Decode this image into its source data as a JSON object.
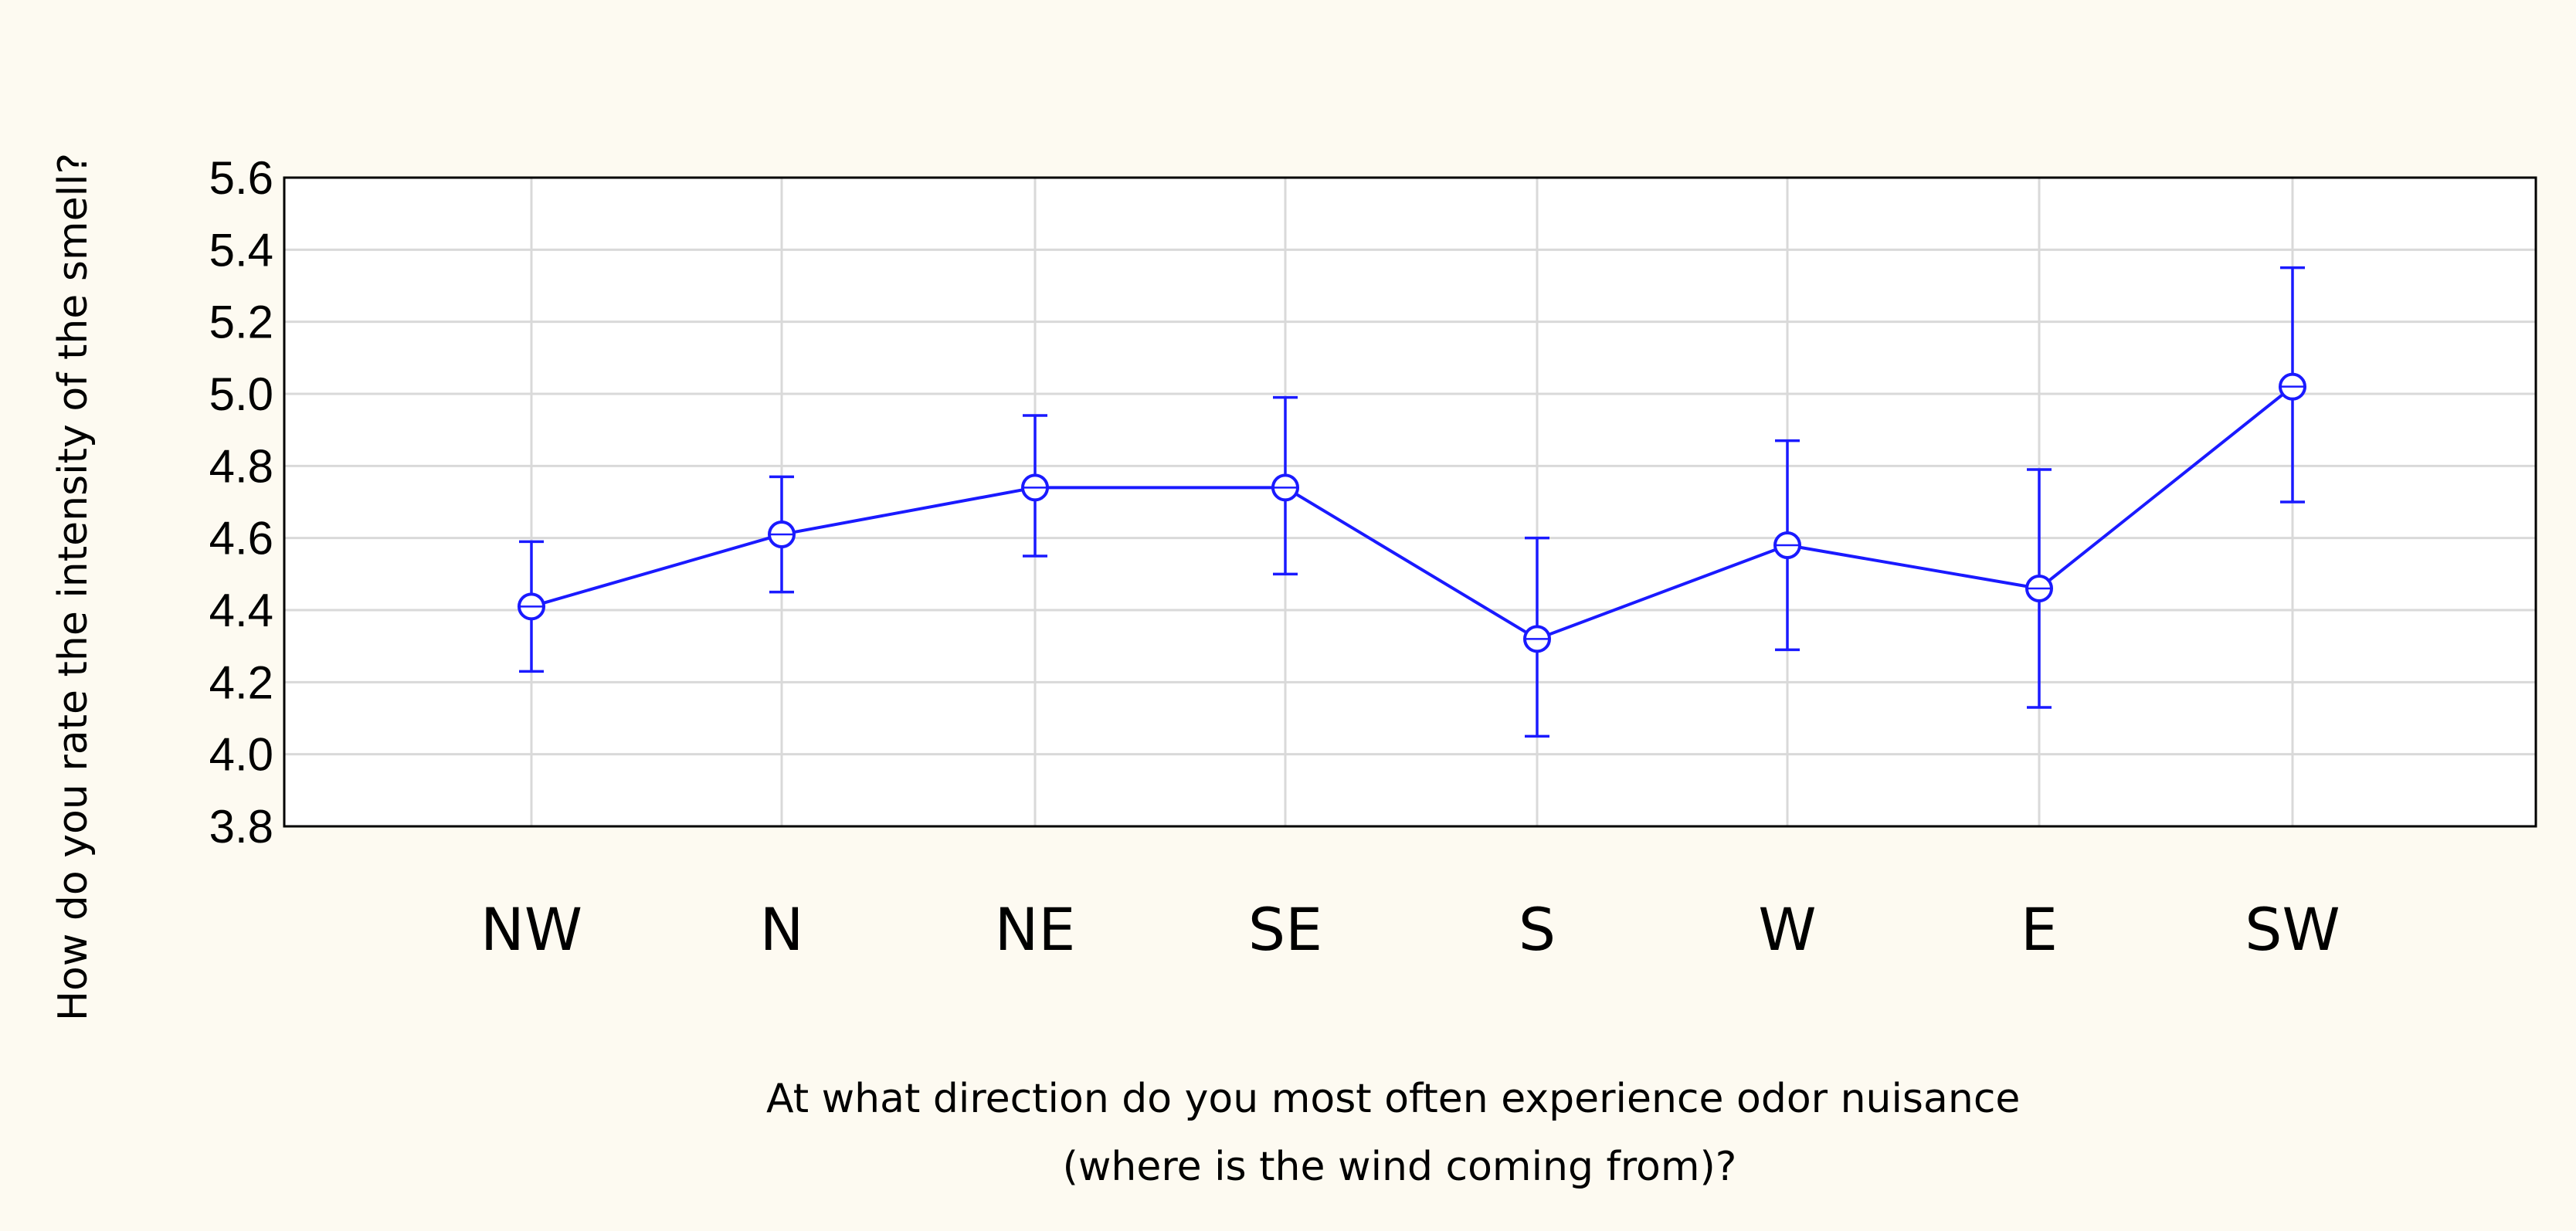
{
  "chart_data": {
    "type": "line",
    "title": "",
    "xlabel": "At what direction do you most often experience odor nuisance\n(where is the wind coming from)?",
    "ylabel": "How do you rate the intensity of the smell?",
    "categories": [
      "NW",
      "N",
      "NE",
      "SE",
      "S",
      "W",
      "E",
      "SW"
    ],
    "series": [
      {
        "values": [
          4.41,
          4.61,
          4.74,
          4.74,
          4.32,
          4.58,
          4.46,
          5.02
        ],
        "error_lower": [
          4.23,
          4.45,
          4.55,
          4.5,
          4.05,
          4.29,
          4.13,
          4.7
        ],
        "error_upper": [
          4.59,
          4.77,
          4.94,
          4.99,
          4.6,
          4.87,
          4.79,
          5.35
        ]
      }
    ],
    "ylim": [
      3.8,
      5.6
    ],
    "yticks": [
      "5.6",
      "5.4",
      "5.2",
      "5.0",
      "4.8",
      "4.6",
      "4.4",
      "4.2",
      "4.0",
      "3.8"
    ],
    "grid": true,
    "marker": "circle",
    "line_color": "#1a1aff"
  }
}
